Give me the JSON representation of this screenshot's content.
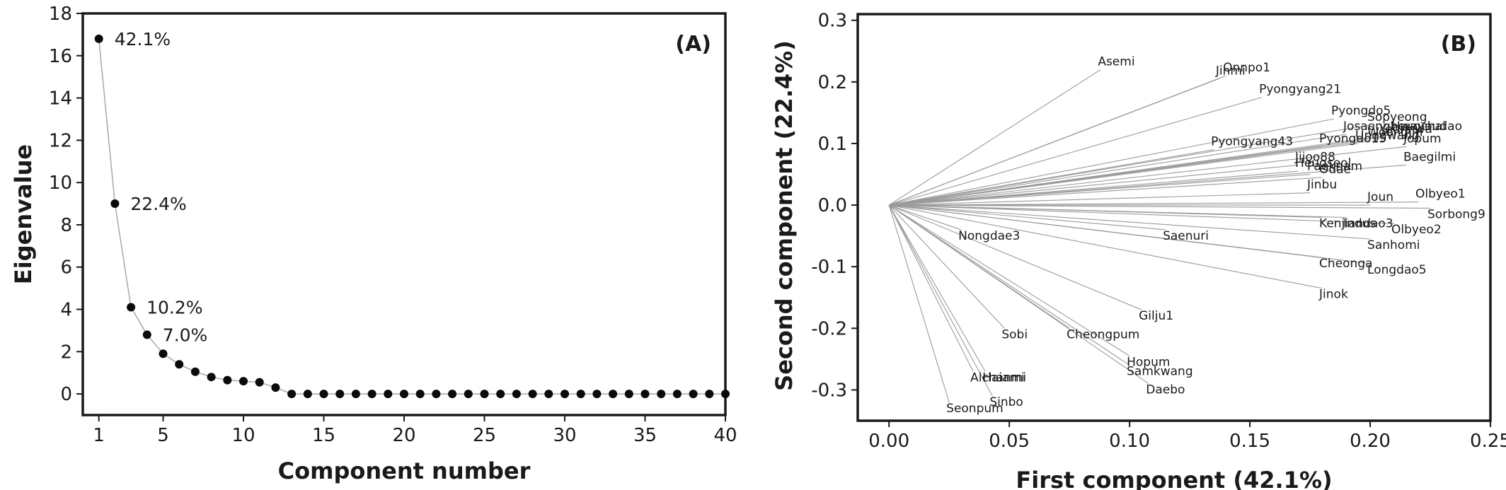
{
  "chart_data": [
    {
      "panel": "(A)",
      "type": "line",
      "xlabel": "Component number",
      "ylabel": "Eigenvalue",
      "xlim": [
        0,
        40
      ],
      "ylim": [
        -1,
        18
      ],
      "xticks": [
        1,
        5,
        10,
        15,
        20,
        25,
        30,
        35,
        40
      ],
      "yticks": [
        0,
        2,
        4,
        6,
        8,
        10,
        12,
        14,
        16,
        18
      ],
      "grid": false,
      "series": [
        {
          "x": [
            1,
            2,
            3,
            4,
            5,
            6,
            7,
            8,
            9,
            10,
            11,
            12,
            13,
            14,
            15,
            16,
            17,
            18,
            19,
            20,
            21,
            22,
            23,
            24,
            25,
            26,
            27,
            28,
            29,
            30,
            31,
            32,
            33,
            34,
            35,
            36,
            37,
            38,
            39,
            40
          ],
          "values": [
            16.8,
            9.0,
            4.1,
            2.8,
            1.9,
            1.4,
            1.05,
            0.8,
            0.65,
            0.6,
            0.55,
            0.3,
            0,
            0,
            0,
            0,
            0,
            0,
            0,
            0,
            0,
            0,
            0,
            0,
            0,
            0,
            0,
            0,
            0,
            0,
            0,
            0,
            0,
            0,
            0,
            0,
            0,
            0,
            0,
            0
          ]
        }
      ],
      "annotations": [
        {
          "x": 1,
          "y": 16.8,
          "text": "42.1%"
        },
        {
          "x": 2,
          "y": 9.0,
          "text": "22.4%"
        },
        {
          "x": 3,
          "y": 4.1,
          "text": "10.2%"
        },
        {
          "x": 4,
          "y": 2.8,
          "text": "7.0%"
        }
      ]
    },
    {
      "panel": "(B)",
      "type": "scatter",
      "xlabel": "First component (42.1%)",
      "ylabel": "Second component (22.4%)",
      "xlim": [
        -0.013,
        0.25
      ],
      "ylim": [
        -0.35,
        0.31
      ],
      "xticks": [
        0.0,
        0.05,
        0.1,
        0.15,
        0.2,
        0.25
      ],
      "xticklabels": [
        "0.00",
        "0.05",
        "0.10",
        "0.15",
        "0.20",
        "0.25"
      ],
      "yticks": [
        0.3,
        0.2,
        0.1,
        0.0,
        -0.1,
        -0.2,
        -0.3
      ],
      "yticklabels": [
        "0.3",
        "0.2",
        "0.1",
        "0.0",
        "-0.1",
        "-0.2",
        "-0.3"
      ],
      "grid": false,
      "points": [
        {
          "name": "Asemi",
          "x": 0.088,
          "y": 0.22
        },
        {
          "name": "Onnpo1",
          "x": 0.14,
          "y": 0.21
        },
        {
          "name": "Jinmi",
          "x": 0.137,
          "y": 0.205
        },
        {
          "name": "Pyongyang21",
          "x": 0.155,
          "y": 0.175
        },
        {
          "name": "Pyongyang43",
          "x": 0.135,
          "y": 0.09
        },
        {
          "name": "Pyongdo5",
          "x": 0.185,
          "y": 0.14
        },
        {
          "name": "Sopyeong",
          "x": 0.2,
          "y": 0.13
        },
        {
          "name": "Josaengheugchal",
          "x": 0.19,
          "y": 0.115
        },
        {
          "name": "Yeonhwa",
          "x": 0.205,
          "y": 0.11
        },
        {
          "name": "Woongjin",
          "x": 0.2,
          "y": 0.105
        },
        {
          "name": "Unggwang",
          "x": 0.195,
          "y": 0.1
        },
        {
          "name": "Hwayoudao",
          "x": 0.21,
          "y": 0.115
        },
        {
          "name": "Pyongdo15",
          "x": 0.18,
          "y": 0.095
        },
        {
          "name": "Jopum",
          "x": 0.215,
          "y": 0.095
        },
        {
          "name": "Jijoo88",
          "x": 0.17,
          "y": 0.065
        },
        {
          "name": "Heugseol",
          "x": 0.17,
          "y": 0.055
        },
        {
          "name": "Paeknam",
          "x": 0.175,
          "y": 0.05
        },
        {
          "name": "Odae",
          "x": 0.18,
          "y": 0.045
        },
        {
          "name": "Baegilmi",
          "x": 0.215,
          "y": 0.065
        },
        {
          "name": "Jinbu",
          "x": 0.175,
          "y": 0.02
        },
        {
          "name": "Joun",
          "x": 0.2,
          "y": 0.0
        },
        {
          "name": "Olbyeo1",
          "x": 0.22,
          "y": 0.005
        },
        {
          "name": "Sorbong9",
          "x": 0.225,
          "y": -0.005
        },
        {
          "name": "Kenjiandao3",
          "x": 0.18,
          "y": -0.02
        },
        {
          "name": "Indus",
          "x": 0.19,
          "y": -0.02
        },
        {
          "name": "Olbyeo2",
          "x": 0.21,
          "y": -0.03
        },
        {
          "name": "Saenuri",
          "x": 0.115,
          "y": -0.04
        },
        {
          "name": "Sanhomi",
          "x": 0.2,
          "y": -0.055
        },
        {
          "name": "Cheonga",
          "x": 0.18,
          "y": -0.085
        },
        {
          "name": "Longdao5",
          "x": 0.2,
          "y": -0.095
        },
        {
          "name": "Jinok",
          "x": 0.18,
          "y": -0.135
        },
        {
          "name": "Nongdae3",
          "x": 0.03,
          "y": -0.04
        },
        {
          "name": "Gilju1",
          "x": 0.105,
          "y": -0.17
        },
        {
          "name": "Sobi",
          "x": 0.048,
          "y": -0.2
        },
        {
          "name": "Cheongpum",
          "x": 0.075,
          "y": -0.2
        },
        {
          "name": "Hopum",
          "x": 0.1,
          "y": -0.245
        },
        {
          "name": "Samkwang",
          "x": 0.1,
          "y": -0.26
        },
        {
          "name": "Daebo",
          "x": 0.108,
          "y": -0.29
        },
        {
          "name": "Alchanmi",
          "x": 0.035,
          "y": -0.27
        },
        {
          "name": "Haiami",
          "x": 0.04,
          "y": -0.27
        },
        {
          "name": "Sinbo",
          "x": 0.043,
          "y": -0.31
        },
        {
          "name": "Seonpum",
          "x": 0.025,
          "y": -0.32
        }
      ]
    }
  ]
}
